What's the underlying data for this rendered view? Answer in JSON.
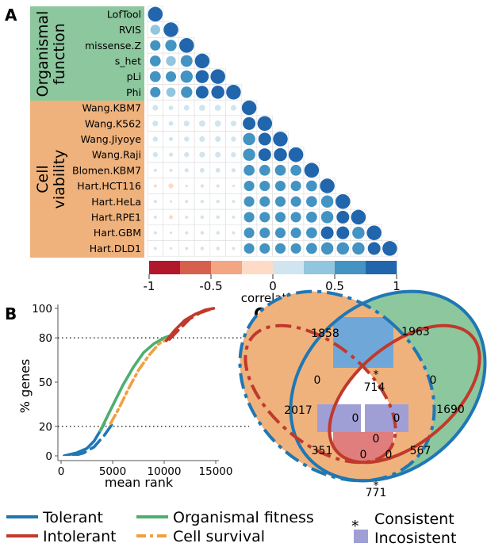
{
  "panel_labels": {
    "a": "A",
    "b": "B",
    "c": "C"
  },
  "colors": {
    "tolerant": "#1f77b4",
    "intolerant": "#c0392b",
    "organismal_fitness": "#4caf6e",
    "cell_survival": "#f0a040",
    "organismal_bg": "#8dc79e",
    "cell_bg": "#efb27c",
    "consistent_fill": "#6fa8d8",
    "inconsistent_fill": "#9f9fd6"
  },
  "panel_a": {
    "group_labels": {
      "organismal": [
        "Organismal",
        "function"
      ],
      "cell": [
        "Cell",
        "viability"
      ]
    },
    "colorbar": {
      "label": "correlation",
      "ticks": [
        "-1",
        "-0.5",
        "0",
        "0.5",
        "1"
      ],
      "colors": [
        "#b2182b",
        "#d6604d",
        "#f4a582",
        "#fddbc7",
        "#d1e5f0",
        "#92c5de",
        "#4393c3",
        "#2166ac"
      ]
    }
  },
  "chart_data": [
    {
      "type": "heatmap",
      "title": "",
      "rows": [
        "LofTool",
        "RVIS",
        "missense.Z",
        "s_het",
        "pLi",
        "Phi",
        "Wang.KBM7",
        "Wang.K562",
        "Wang.Jiyoye",
        "Wang.Raji",
        "Blomen.KBM7",
        "Hart.HCT116",
        "Hart.HeLa",
        "Hart.RPE1",
        "Hart.GBM",
        "Hart.DLD1"
      ],
      "groups": [
        {
          "name": "Organismal function",
          "rows": [
            0,
            1,
            2,
            3,
            4,
            5
          ]
        },
        {
          "name": "Cell viability",
          "rows": [
            6,
            7,
            8,
            9,
            10,
            11,
            12,
            13,
            14,
            15
          ]
        }
      ],
      "legend": {
        "label": "correlation",
        "range": [
          -1,
          1
        ]
      },
      "lower_triangle": [
        [
          1.0
        ],
        [
          0.45,
          1.0
        ],
        [
          0.5,
          0.6,
          1.0
        ],
        [
          0.55,
          0.45,
          0.65,
          1.0
        ],
        [
          0.55,
          0.5,
          0.7,
          0.8,
          1.0
        ],
        [
          0.5,
          0.4,
          0.6,
          0.75,
          0.8,
          1.0
        ],
        [
          0.15,
          0.1,
          0.15,
          0.18,
          0.18,
          0.15,
          1.0
        ],
        [
          0.15,
          0.1,
          0.15,
          0.18,
          0.18,
          0.15,
          0.75,
          1.0
        ],
        [
          0.12,
          0.08,
          0.12,
          0.15,
          0.15,
          0.12,
          0.7,
          0.75,
          1.0
        ],
        [
          0.12,
          0.08,
          0.12,
          0.15,
          0.15,
          0.12,
          0.7,
          0.75,
          0.8,
          1.0
        ],
        [
          0.05,
          0.05,
          0.08,
          0.1,
          0.1,
          0.08,
          0.55,
          0.55,
          0.55,
          0.55,
          1.0
        ],
        [
          -0.05,
          -0.12,
          0.03,
          0.05,
          0.05,
          0.03,
          0.5,
          0.5,
          0.5,
          0.5,
          0.55,
          1.0
        ],
        [
          0.05,
          0.03,
          0.05,
          0.06,
          0.06,
          0.05,
          0.5,
          0.5,
          0.5,
          0.5,
          0.55,
          0.7,
          1.0
        ],
        [
          0.05,
          -0.08,
          0.05,
          0.06,
          0.06,
          0.05,
          0.5,
          0.5,
          0.5,
          0.5,
          0.55,
          0.7,
          0.75,
          1.0
        ],
        [
          0.05,
          0.03,
          0.05,
          0.06,
          0.06,
          0.05,
          0.5,
          0.5,
          0.5,
          0.5,
          0.55,
          0.75,
          0.75,
          0.7,
          1.0
        ],
        [
          0.05,
          0.03,
          0.05,
          0.06,
          0.06,
          0.05,
          0.5,
          0.5,
          0.5,
          0.5,
          0.55,
          0.7,
          0.7,
          0.7,
          0.75,
          1.0
        ]
      ]
    },
    {
      "type": "line",
      "title": "",
      "xlabel": "mean rank",
      "ylabel": "% genes",
      "xlim": [
        0,
        15500
      ],
      "ylim": [
        0,
        100
      ],
      "xticks": [
        "0",
        "5000",
        "10000",
        "15000"
      ],
      "yticks": [
        "0",
        "20",
        "50",
        "80",
        "100"
      ],
      "reference_lines_y": [
        20,
        80
      ],
      "series": [
        {
          "role": "tolerant_organismal",
          "color": "#1f77b4",
          "dash": "solid",
          "x": [
            300,
            1500,
            2500,
            3200,
            3800,
            4200
          ],
          "y": [
            0,
            2,
            5,
            10,
            17,
            22
          ]
        },
        {
          "role": "tolerant_cell",
          "color": "#1f77b4",
          "dash": "long-dash",
          "x": [
            1200,
            2200,
            3200,
            4200,
            5000
          ],
          "y": [
            0,
            2,
            6,
            14,
            22
          ]
        },
        {
          "role": "organismal_fitness",
          "color": "#4caf6e",
          "dash": "solid",
          "x": [
            3800,
            5000,
            6000,
            7000,
            8000,
            9000,
            10000,
            10800
          ],
          "y": [
            17,
            34,
            48,
            60,
            70,
            76,
            80,
            82
          ]
        },
        {
          "role": "cell_survival",
          "color": "#f0a040",
          "dash": "dash-dot",
          "x": [
            4800,
            5600,
            6500,
            7500,
            8500,
            9500,
            10500
          ],
          "y": [
            22,
            32,
            45,
            58,
            68,
            76,
            80
          ]
        },
        {
          "role": "intolerant_organismal",
          "color": "#c0392b",
          "dash": "solid",
          "x": [
            10200,
            11000,
            12000,
            13000,
            14000,
            14800
          ],
          "y": [
            78,
            85,
            92,
            96,
            99,
            100
          ]
        },
        {
          "role": "intolerant_cell",
          "color": "#c0392b",
          "dash": "long-dash",
          "x": [
            10500,
            11500,
            12500,
            13500,
            14300,
            14900
          ],
          "y": [
            79,
            86,
            93,
            97,
            99,
            100
          ]
        }
      ]
    }
  ],
  "venn": {
    "regions": [
      {
        "value": "1858"
      },
      {
        "value": "1963"
      },
      {
        "value": "2017"
      },
      {
        "value": "1690"
      },
      {
        "value": "714",
        "marker": "*"
      },
      {
        "value": "771",
        "marker": "*"
      },
      {
        "value": "351"
      },
      {
        "value": "567"
      },
      {
        "value": "0"
      },
      {
        "value": "0"
      },
      {
        "value": "0"
      },
      {
        "value": "0"
      },
      {
        "value": "0"
      },
      {
        "value": "0"
      },
      {
        "value": "0"
      }
    ]
  },
  "legend": {
    "tolerant": "Tolerant",
    "intolerant": "Intolerant",
    "organismal_fitness": "Organismal fitness",
    "cell_survival": "Cell survival",
    "consistent_marker": "*",
    "consistent": "Consistent",
    "inconsistent": "Incosistent"
  }
}
